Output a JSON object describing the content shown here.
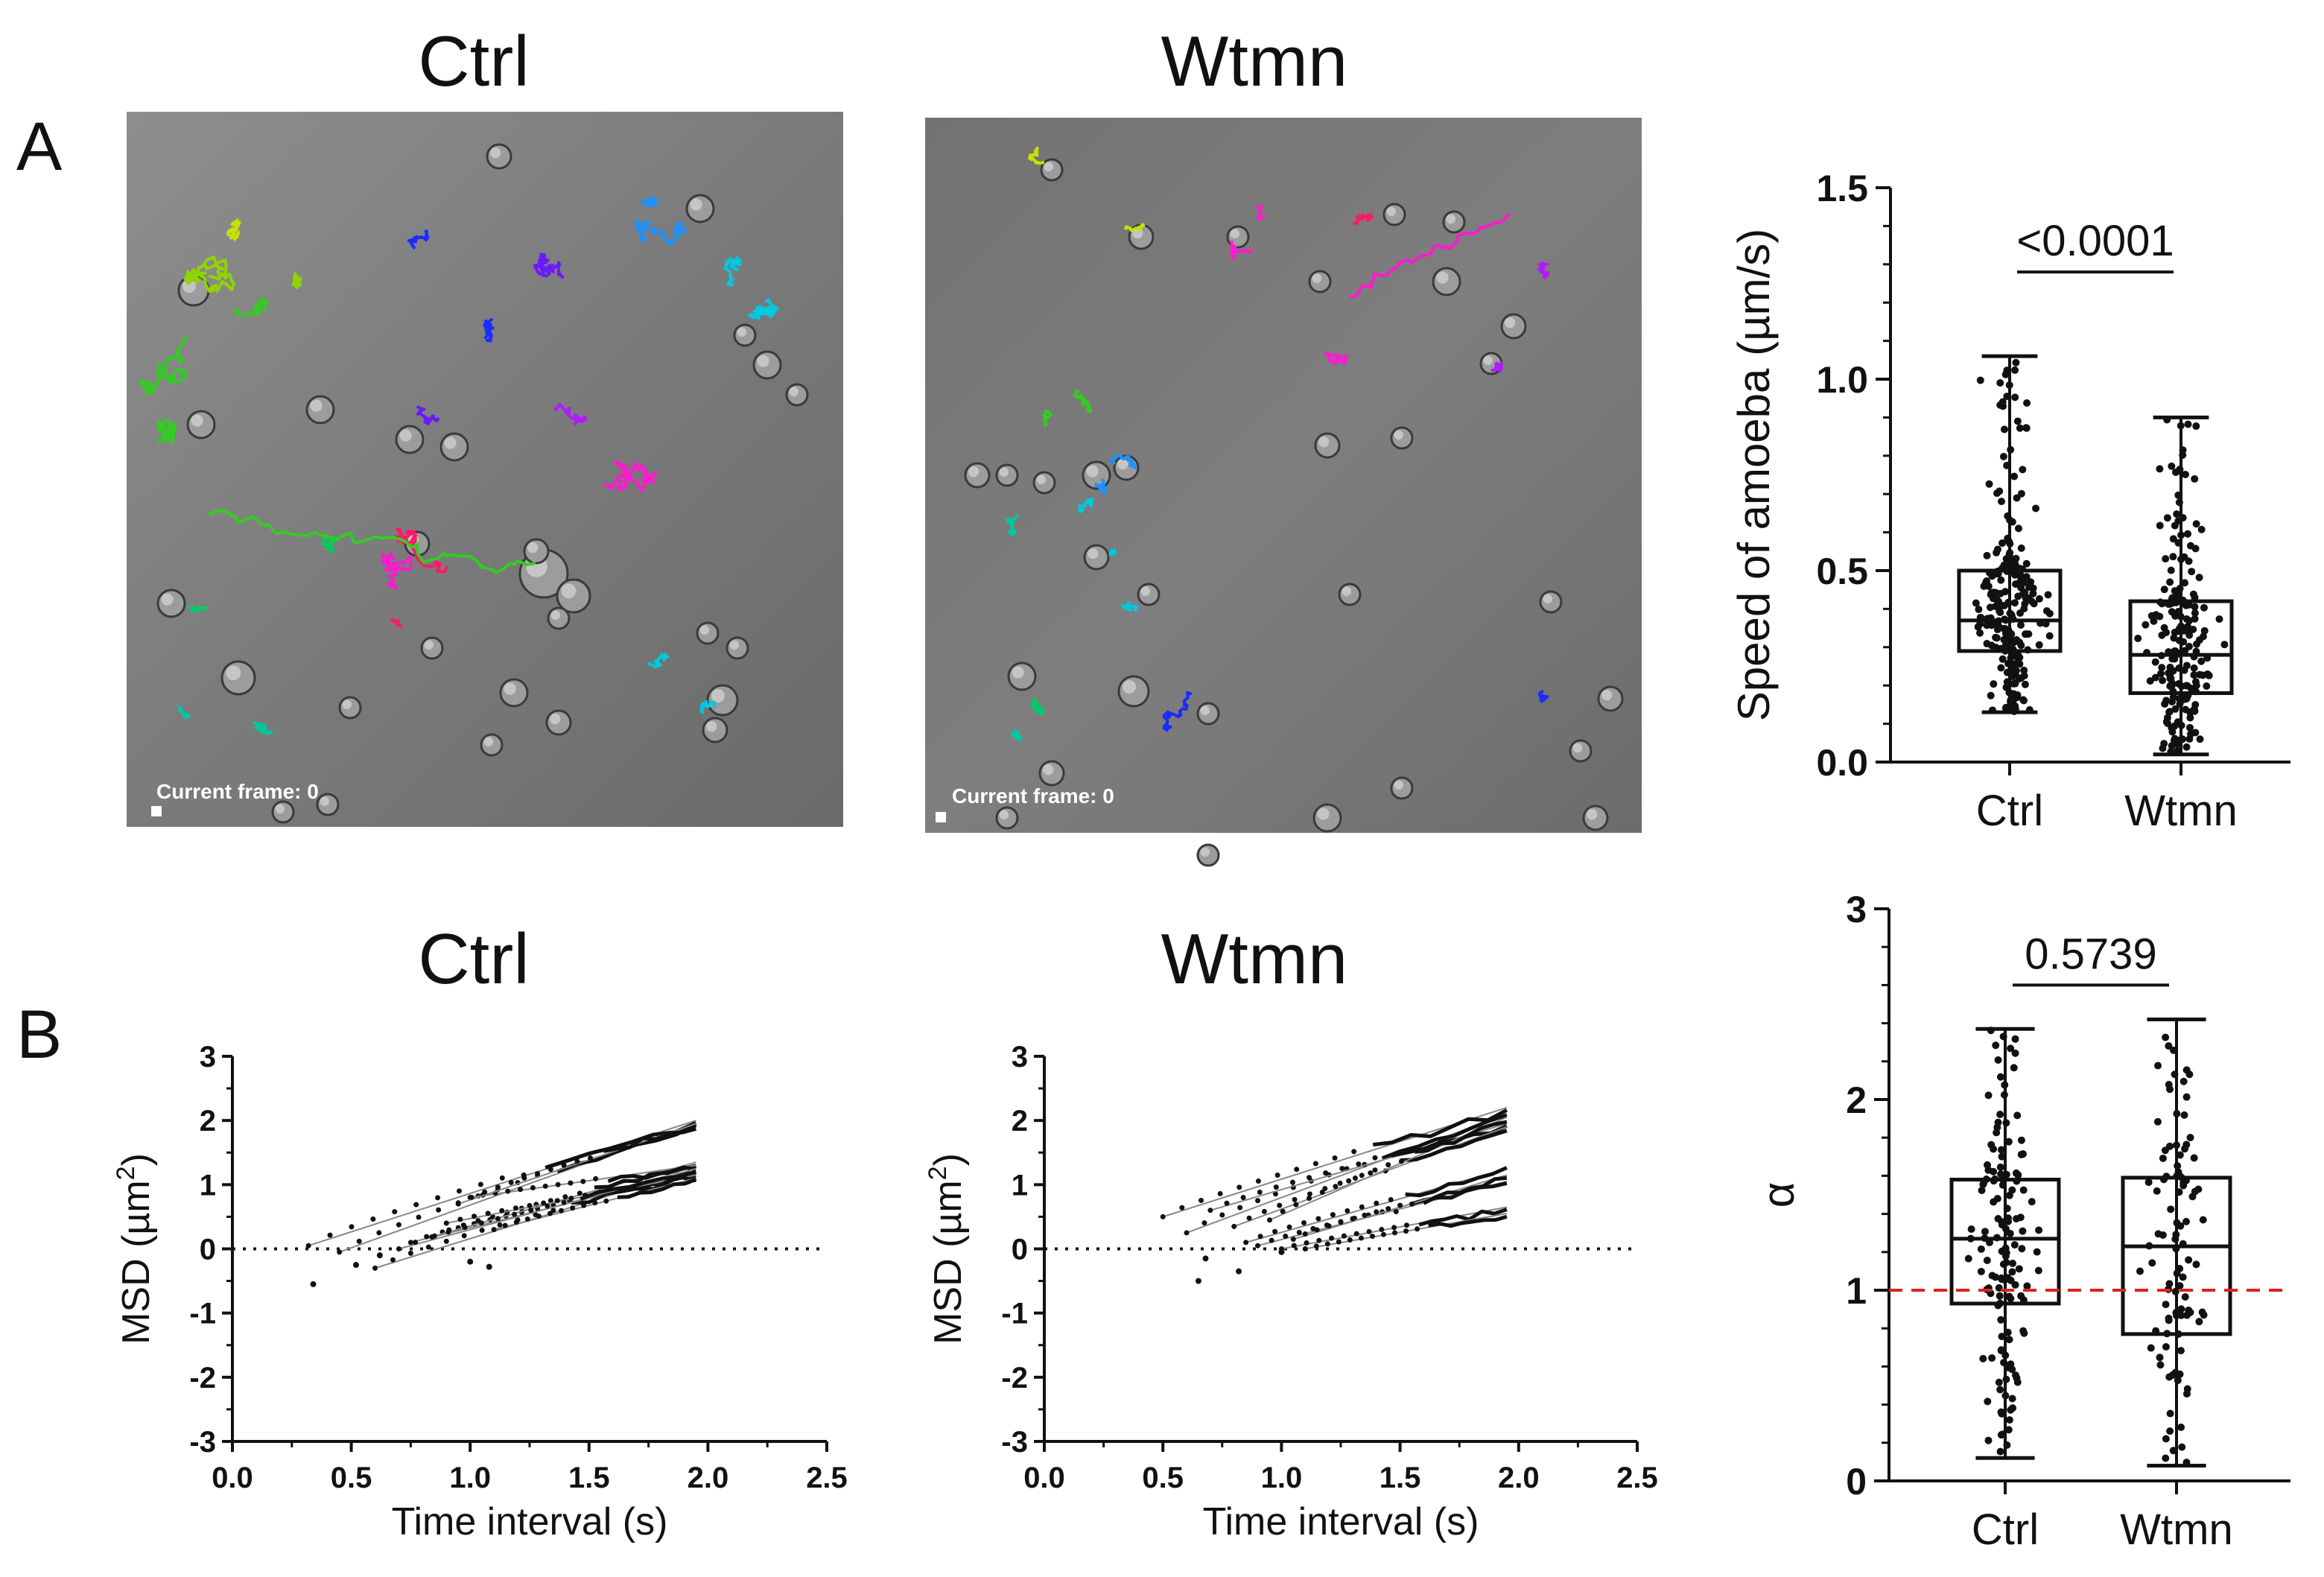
{
  "figure": {
    "panel_labels": [
      "A",
      "B"
    ],
    "micrographs": [
      {
        "title": "Ctrl",
        "frame_label": "Current frame: 0"
      },
      {
        "title": "Wtmn",
        "frame_label": "Current frame: 0"
      }
    ],
    "track_colors": [
      "#c8e000",
      "#8fd400",
      "#33cc22",
      "#00cc66",
      "#00c8a0",
      "#00c8e0",
      "#1e90ff",
      "#1a2bff",
      "#6a1aff",
      "#b01aff",
      "#ff1ad0",
      "#ff1a6a"
    ]
  },
  "chart_data": [
    {
      "type": "box",
      "name": "speed",
      "categories": [
        "Ctrl",
        "Wtmn"
      ],
      "ylabel": "Speed of amoeba (µm/s)",
      "ylim": [
        0,
        1.5
      ],
      "yticks": [
        "0.0",
        "0.5",
        "1.0",
        "1.5"
      ],
      "boxes": [
        {
          "min": 0.13,
          "q1": 0.29,
          "median": 0.37,
          "q3": 0.5,
          "max": 1.06,
          "n_points": 230
        },
        {
          "min": 0.02,
          "q1": 0.18,
          "median": 0.28,
          "q3": 0.42,
          "max": 0.9,
          "n_points": 200
        }
      ],
      "comparison_label": "<0.0001"
    },
    {
      "type": "line",
      "name": "msd_ctrl",
      "title": "Ctrl",
      "xlabel": "Time interval (s)",
      "ylabel_main": "MSD (µm",
      "ylabel_sup": "2",
      "ylabel_tail": ")",
      "xlim": [
        0,
        2.5
      ],
      "ylim": [
        -3,
        3
      ],
      "xticks": [
        "0.0",
        "0.5",
        "1.0",
        "1.5",
        "2.0",
        "2.5"
      ],
      "yticks": [
        "-3",
        "-2",
        "-1",
        "0",
        "1",
        "2",
        "3"
      ],
      "reference_line": 0
    },
    {
      "type": "line",
      "name": "msd_wtmn",
      "title": "Wtmn",
      "xlabel": "Time interval (s)",
      "ylabel_main": "MSD (µm",
      "ylabel_sup": "2",
      "ylabel_tail": ")",
      "xlim": [
        0,
        2.5
      ],
      "ylim": [
        -3,
        3
      ],
      "xticks": [
        "0.0",
        "0.5",
        "1.0",
        "1.5",
        "2.0",
        "2.5"
      ],
      "yticks": [
        "-3",
        "-2",
        "-1",
        "0",
        "1",
        "2",
        "3"
      ],
      "reference_line": 0
    },
    {
      "type": "box",
      "name": "alpha",
      "categories": [
        "Ctrl",
        "Wtmn"
      ],
      "ylabel": "α",
      "ylim": [
        0,
        3
      ],
      "yticks": [
        "0",
        "1",
        "2",
        "3"
      ],
      "boxes": [
        {
          "min": 0.12,
          "q1": 0.93,
          "median": 1.27,
          "q3": 1.58,
          "max": 2.37,
          "n_points": 140
        },
        {
          "min": 0.08,
          "q1": 0.77,
          "median": 1.23,
          "q3": 1.59,
          "max": 2.42,
          "n_points": 100
        }
      ],
      "comparison_label": "0.5739",
      "reference_line": 1,
      "reference_color": "#e02020"
    }
  ]
}
